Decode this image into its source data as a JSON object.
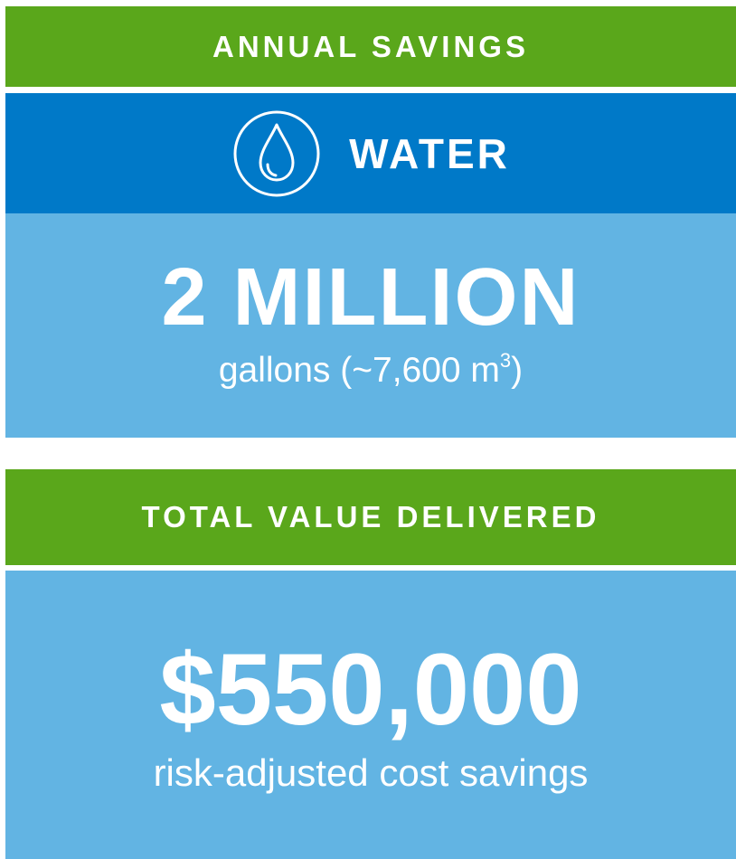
{
  "annual_savings": {
    "header": "ANNUAL SAVINGS"
  },
  "water": {
    "icon": "water-drop-icon",
    "label": "WATER",
    "value": "2 MILLION",
    "unit_text": "gallons (~7,600 m",
    "unit_sup": "3",
    "unit_close": ")"
  },
  "total_value": {
    "header": "TOTAL VALUE DELIVERED",
    "value": "$550,000",
    "description": "risk-adjusted cost savings"
  },
  "colors": {
    "green": "#5aa71b",
    "dark_blue": "#0079c8",
    "light_blue": "#62b4e3",
    "text": "#ffffff"
  }
}
